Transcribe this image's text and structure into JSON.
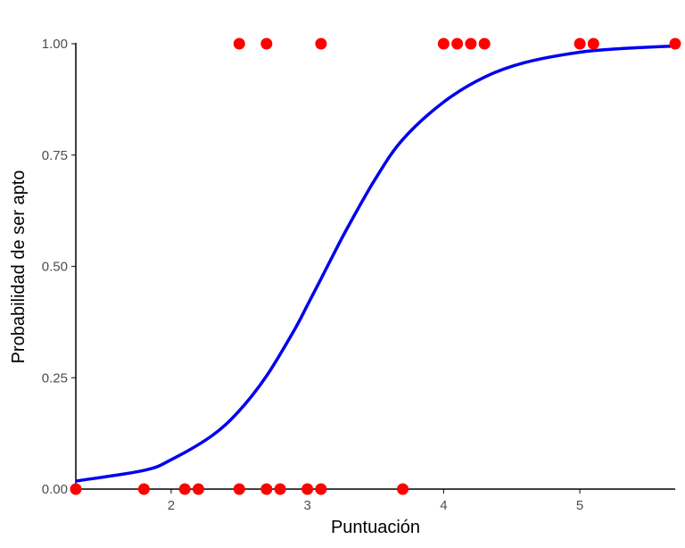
{
  "chart_data": {
    "type": "scatter",
    "xlabel": "Puntuación",
    "ylabel": "Probabilidad de ser apto",
    "xlim": [
      1.3,
      5.7
    ],
    "ylim": [
      0,
      1
    ],
    "x_ticks": [
      2,
      3,
      4,
      5
    ],
    "x_tick_labels": [
      "2",
      "3",
      "4",
      "5"
    ],
    "y_ticks": [
      0,
      0.25,
      0.5,
      0.75,
      1
    ],
    "y_tick_labels": [
      "0.00",
      "0.25",
      "0.50",
      "0.75",
      "1.00"
    ],
    "grid": false,
    "series": [
      {
        "type": "scatter",
        "color": "#ff0000",
        "points": [
          {
            "x": 1.3,
            "y": 0
          },
          {
            "x": 1.8,
            "y": 0
          },
          {
            "x": 2.1,
            "y": 0
          },
          {
            "x": 2.2,
            "y": 0
          },
          {
            "x": 2.5,
            "y": 0
          },
          {
            "x": 2.7,
            "y": 0
          },
          {
            "x": 2.8,
            "y": 0
          },
          {
            "x": 3.0,
            "y": 0
          },
          {
            "x": 3.1,
            "y": 0
          },
          {
            "x": 3.7,
            "y": 0
          },
          {
            "x": 2.5,
            "y": 1
          },
          {
            "x": 2.7,
            "y": 1
          },
          {
            "x": 3.1,
            "y": 1
          },
          {
            "x": 4.0,
            "y": 1
          },
          {
            "x": 4.1,
            "y": 1
          },
          {
            "x": 4.2,
            "y": 1
          },
          {
            "x": 4.3,
            "y": 1
          },
          {
            "x": 5.0,
            "y": 1
          },
          {
            "x": 5.1,
            "y": 1
          },
          {
            "x": 5.7,
            "y": 1
          }
        ]
      },
      {
        "type": "line",
        "color": "#0000ee",
        "points": [
          {
            "x": 1.3,
            "y": 0.018
          },
          {
            "x": 1.8,
            "y": 0.042
          },
          {
            "x": 2.0,
            "y": 0.066
          },
          {
            "x": 2.3,
            "y": 0.12
          },
          {
            "x": 2.5,
            "y": 0.176
          },
          {
            "x": 2.7,
            "y": 0.254
          },
          {
            "x": 2.9,
            "y": 0.355
          },
          {
            "x": 3.0,
            "y": 0.413
          },
          {
            "x": 3.1,
            "y": 0.472
          },
          {
            "x": 3.2,
            "y": 0.532
          },
          {
            "x": 3.3,
            "y": 0.59
          },
          {
            "x": 3.5,
            "y": 0.697
          },
          {
            "x": 3.7,
            "y": 0.785
          },
          {
            "x": 4.0,
            "y": 0.869
          },
          {
            "x": 4.3,
            "y": 0.925
          },
          {
            "x": 4.6,
            "y": 0.958
          },
          {
            "x": 5.0,
            "y": 0.981
          },
          {
            "x": 5.3,
            "y": 0.989
          },
          {
            "x": 5.7,
            "y": 0.995
          }
        ]
      }
    ]
  }
}
